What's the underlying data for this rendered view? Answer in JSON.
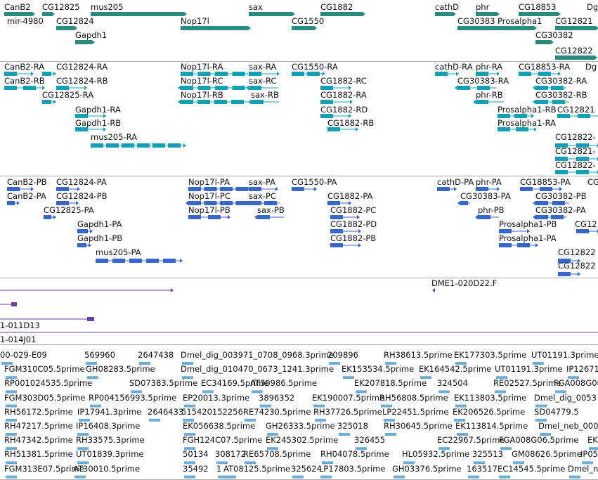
{
  "panels": {
    "genes": {
      "labels": [
        "CanB2",
        "CG12825",
        "mus205",
        "sax",
        "CG1882",
        "cathD",
        "phr",
        "CG18853",
        "Dg",
        "mir-4980",
        "CG12824",
        "Nop17l",
        "CG1550",
        "CG30383",
        "Prosalpha1",
        "CG12821",
        "Gapdh1",
        "CG30382",
        "CG12822"
      ]
    },
    "transcripts_a": {
      "labels": [
        "CanB2-RA",
        "CG12824-RA",
        "Nop17l-RA",
        "sax-RA",
        "CG1550-RA",
        "cathD-RA",
        "phr-RA",
        "CG18853-RA",
        "Dg",
        "CanB2-RB",
        "CG12824-RB",
        "Nop17l-RC",
        "sax-RC",
        "CG1882-RC",
        "CG30383-RA",
        "CG30382-RA",
        "CG12825-RA",
        "Nop17l-RB",
        "sax-RB",
        "CG1882-RA",
        "phr-RB",
        "CG30382-RB",
        "Gapdh1-RA",
        "CG1882-RD",
        "Prosalpha1-RB",
        "CG12821",
        "Gapdh1-RB",
        "CG1882-RB",
        "Prosalpha1-RA",
        "mus205-RA",
        "CG12822-",
        "CG12821-",
        "CG12822-"
      ]
    },
    "transcripts_b": {
      "labels": [
        "CanB2-PB",
        "CG12824-PA",
        "Nop17l-PA",
        "sax-PA",
        "CG1550-PA",
        "cathD-PA",
        "phr-PA",
        "CG18853-PA",
        "CG12",
        "CanB2-PA",
        "CG12824-PB",
        "Nop17l-PC",
        "sax-PC",
        "CG1882-PA",
        "CG30383-PA",
        "CG30382-PB",
        "CG12825-PA",
        "Nop17l-PB",
        "sax-PB",
        "CG1882-PC",
        "phr-PB",
        "CG30382-PA",
        "Gapdh1-PA",
        "CG1882-PD",
        "Prosalpha1-PB",
        "CG12",
        "Gapdh1-PB",
        "CG1882-PB",
        "Prosalpha1-PA",
        "mus205-PA",
        "CG12822",
        "CG12822"
      ]
    },
    "clones": {
      "labels": [
        "DME1-020D22.F",
        "1-011D13",
        "1-014J01"
      ]
    },
    "ests": {
      "rows": [
        [
          "00-029-E09",
          "569960",
          "2647438",
          "Dmel_dig_003971_0708_0968.3prime",
          "209896",
          "RH38613.5prime",
          "EK177303.5prime",
          "UT01191.3prime"
        ],
        [
          "FGM310C05.5prime",
          "GH08283.5prime",
          "Dmel_dig_010470_0673_1241.3prime",
          "EK153534.5prime",
          "EK164542.5prime",
          "UT01191.3prime",
          "IP12671"
        ],
        [
          "RP001024535.5prime",
          "SD07383.5prime",
          "EC34169.5prime",
          "AT30986.5prime",
          "EK207818.5prime",
          "324504",
          "RE02527.5prime",
          "FGA008G06.5"
        ],
        [
          "FGM303D05.5prime",
          "RP004156993.5prime",
          "EP20013.3prime",
          "3896352",
          "EK190007.5prime",
          "RH56808.5prime",
          "EK113803.5prime",
          "Dmel_dig_0053"
        ],
        [
          "RH56172.5prime",
          "IP17941.3prime",
          "2646433",
          "515420152256",
          "RE74230.5prime",
          "RH37726.5prime",
          "LP22451.5prime",
          "EK206526.5prime",
          "SD04779.5"
        ],
        [
          "RH47217.5prime",
          "IP16408.3prime",
          "EK056638.5prime",
          "GH26333.5prime",
          "325018",
          "RH30645.5prime",
          "EK113814.5prime",
          "Dmel_neb_0008"
        ],
        [
          "RH47342.5prime",
          "RH33575.3prime",
          "FGH124C07.5prime",
          "EK245302.5prime",
          "326455",
          "EC22967.5prime",
          "FGA008G06.5prime",
          "EK"
        ],
        [
          "RH51381.5prime",
          "UT01839.3prime",
          "50134",
          "308172",
          "RE65708.5prime",
          "RH04078.5prime",
          "HL05932.5prime",
          "325513",
          "GM08626.5prime",
          "IP05"
        ],
        [
          "FGM313E07.5prime",
          "AT30010.5prime",
          "35492",
          "1",
          "AT08125.5prime",
          "325624",
          "LP17803.5prime",
          "GH03376.5prime",
          "163517",
          "EC14545.5prime",
          "Dmel_n"
        ]
      ]
    }
  },
  "colors": {
    "gene": "#2a8a80",
    "transcript": "#14a0b4",
    "protein": "#3466cc",
    "clone": "#6a3fa0",
    "est": "#6aaed8",
    "divider": "#b0b0b0"
  }
}
